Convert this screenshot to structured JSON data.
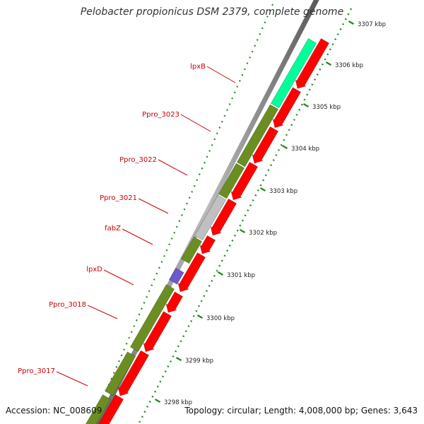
{
  "title": "Pelobacter propionicus DSM 2379, complete genome",
  "accession": "Accession: NC_008609",
  "topology": "Topology: circular; Length: 4,008,000 bp; Genes: 3,643",
  "colors": {
    "cds_forward": "#6b8e23",
    "cds_reverse": "#ff0000",
    "rna": "#00ff99",
    "other": "#c0c0c0",
    "selected": "#6a5acd",
    "label": "#cc0000",
    "tick": "#228b22"
  },
  "scale": {
    "unit": "kbp",
    "ticks": [
      {
        "label": "3298 kbp"
      },
      {
        "label": "3299 kbp"
      },
      {
        "label": "3300 kbp"
      },
      {
        "label": "3301 kbp"
      },
      {
        "label": "3302 kbp"
      },
      {
        "label": "3303 kbp"
      },
      {
        "label": "3304 kbp"
      },
      {
        "label": "3305 kbp"
      },
      {
        "label": "3306 kbp"
      },
      {
        "label": "3307 kbp"
      }
    ]
  },
  "gene_labels": [
    {
      "text": "lpxB"
    },
    {
      "text": "Ppro_3023"
    },
    {
      "text": "Ppro_3022"
    },
    {
      "text": "Ppro_3021"
    },
    {
      "text": "fabZ"
    },
    {
      "text": "lpxD"
    },
    {
      "text": "Ppro_3018"
    },
    {
      "text": "Ppro_3017"
    }
  ]
}
